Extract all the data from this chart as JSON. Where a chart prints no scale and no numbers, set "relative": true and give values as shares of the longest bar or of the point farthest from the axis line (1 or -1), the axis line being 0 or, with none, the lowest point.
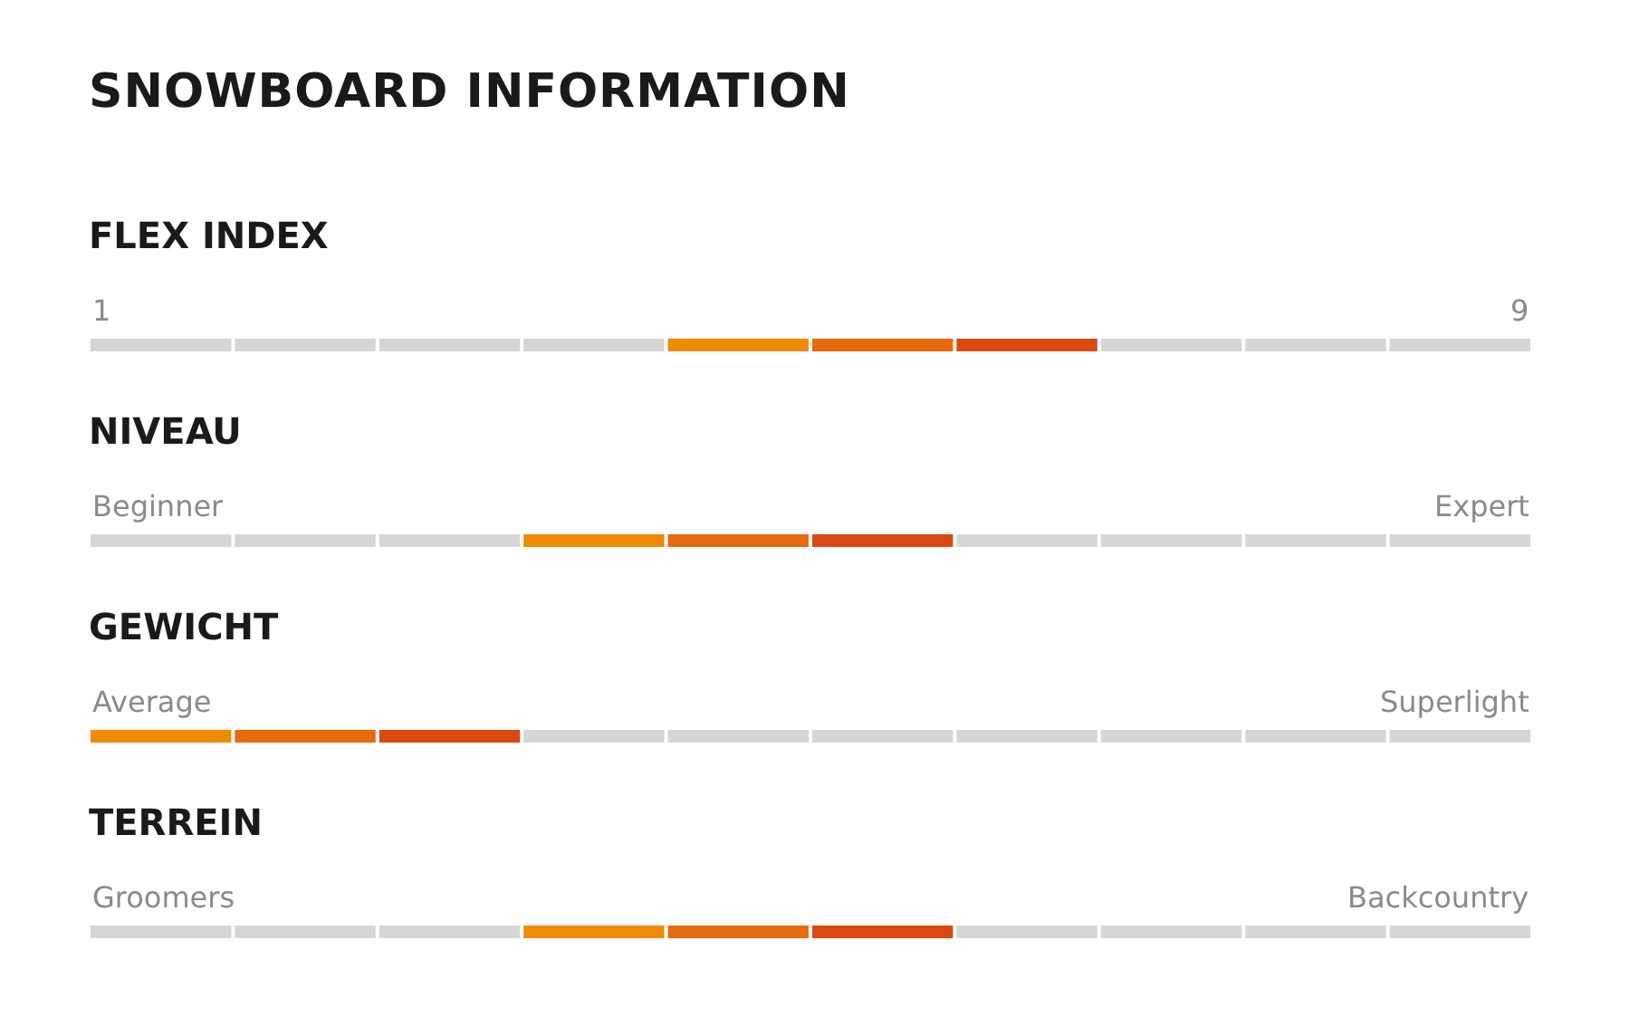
{
  "chart_data": [
    {
      "type": "bar",
      "title": "SNOWBOARD INFORMATION",
      "subtitle": "FLEX INDEX",
      "relative": true,
      "categories": [
        null,
        null,
        null,
        null,
        null,
        null,
        null,
        null,
        null,
        null
      ],
      "annotations": [
        "1",
        "9"
      ],
      "values": [
        1,
        1,
        1,
        1,
        1,
        1,
        1,
        1,
        1,
        1
      ],
      "colors": [
        "#d6d6d6",
        "#d6d6d6",
        "#d6d6d6",
        "#d6d6d6",
        "#f08a00",
        "#e8680c",
        "#da4a10",
        "#d6d6d6",
        "#d6d6d6",
        "#d6d6d6"
      ]
    },
    {
      "type": "bar",
      "title": "NIVEAU",
      "relative": true,
      "categories": [
        null,
        null,
        null,
        null,
        null,
        null,
        null,
        null,
        null,
        null
      ],
      "annotations": [
        "Beginner",
        "Expert"
      ],
      "values": [
        1,
        1,
        1,
        1,
        1,
        1,
        1,
        1,
        1,
        1
      ],
      "colors": [
        "#d6d6d6",
        "#d6d6d6",
        "#d6d6d6",
        "#f08a00",
        "#e8680c",
        "#da4a10",
        "#d6d6d6",
        "#d6d6d6",
        "#d6d6d6",
        "#d6d6d6"
      ]
    },
    {
      "type": "bar",
      "title": "GEWICHT",
      "relative": true,
      "categories": [
        null,
        null,
        null,
        null,
        null,
        null,
        null,
        null,
        null,
        null
      ],
      "annotations": [
        "Average",
        "Superlight"
      ],
      "values": [
        1,
        1,
        1,
        1,
        1,
        1,
        1,
        1,
        1,
        1
      ],
      "colors": [
        "#f08a00",
        "#e8680c",
        "#da4a10",
        "#d6d6d6",
        "#d6d6d6",
        "#d6d6d6",
        "#d6d6d6",
        "#d6d6d6",
        "#d6d6d6",
        "#d6d6d6"
      ]
    },
    {
      "type": "bar",
      "title": "TERREIN",
      "relative": true,
      "categories": [
        null,
        null,
        null,
        null,
        null,
        null,
        null,
        null,
        null,
        null
      ],
      "annotations": [
        "Groomers",
        "Backcountry"
      ],
      "values": [
        1,
        1,
        1,
        1,
        1,
        1,
        1,
        1,
        1,
        1
      ],
      "colors": [
        "#d6d6d6",
        "#d6d6d6",
        "#d6d6d6",
        "#f08a00",
        "#e8680c",
        "#da4a10",
        "#d6d6d6",
        "#d6d6d6",
        "#d6d6d6",
        "#d6d6d6"
      ]
    }
  ]
}
